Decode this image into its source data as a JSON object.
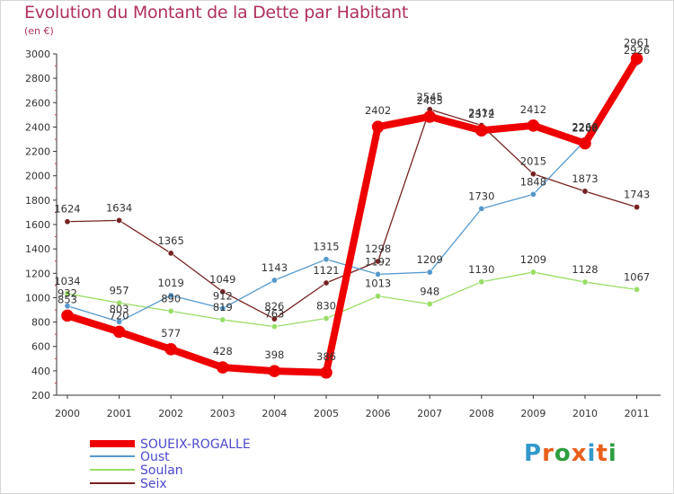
{
  "title": "Evolution du Montant de la Dette par Habitant",
  "unit": "(en €)",
  "brand": {
    "text": "Proxiti",
    "colors": [
      "#3399cc",
      "#e8601c",
      "#2e9e3e",
      "#e8601c",
      "#3399cc",
      "#e8601c",
      "#2e9e3e"
    ]
  },
  "chart_data": {
    "type": "line",
    "title": "Evolution du Montant de la Dette par Habitant",
    "ylabel": "(en €)",
    "x": [
      "2000",
      "2001",
      "2002",
      "2003",
      "2004",
      "2005",
      "2006",
      "2007",
      "2008",
      "2009",
      "2010",
      "2011"
    ],
    "ylim": [
      200,
      3000
    ],
    "yticks": [
      200,
      400,
      600,
      800,
      1000,
      1200,
      1400,
      1600,
      1800,
      2000,
      2200,
      2400,
      2600,
      2800,
      3000
    ],
    "grid": false,
    "legend": "bottom-left",
    "series": [
      {
        "name": "SOUEIX-ROGALLE",
        "color": "#ee0000",
        "width": 8,
        "values": [
          853,
          720,
          577,
          428,
          398,
          386,
          2402,
          2485,
          2372,
          2412,
          2266,
          2961
        ]
      },
      {
        "name": "Oust",
        "color": "#5599cc",
        "width": 1.3,
        "values": [
          932,
          803,
          1019,
          912,
          1143,
          1315,
          1192,
          1209,
          1730,
          1848,
          2288,
          2926
        ]
      },
      {
        "name": "Soulan",
        "color": "#99dd66",
        "width": 1.3,
        "values": [
          1034,
          957,
          890,
          819,
          763,
          830,
          1013,
          948,
          1130,
          1209,
          1128,
          1067
        ]
      },
      {
        "name": "Seix",
        "color": "#772222",
        "width": 1.3,
        "values": [
          1624,
          1634,
          1365,
          1049,
          826,
          1121,
          1298,
          2545,
          2414,
          2015,
          1873,
          1743
        ]
      }
    ]
  }
}
